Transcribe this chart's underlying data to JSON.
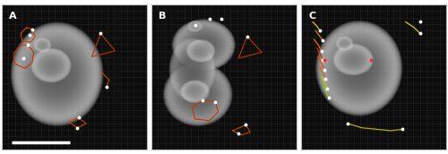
{
  "panels": [
    "A",
    "B",
    "C"
  ],
  "bg_color": "#0d0d0d",
  "grid_color": "#222222",
  "border_color": "#bbbbbb",
  "label_color": "#ffffff",
  "label_fontsize": 8,
  "fig_width": 5.0,
  "fig_height": 1.72,
  "dpi": 100,
  "scale_bar_color": "#ffffff"
}
